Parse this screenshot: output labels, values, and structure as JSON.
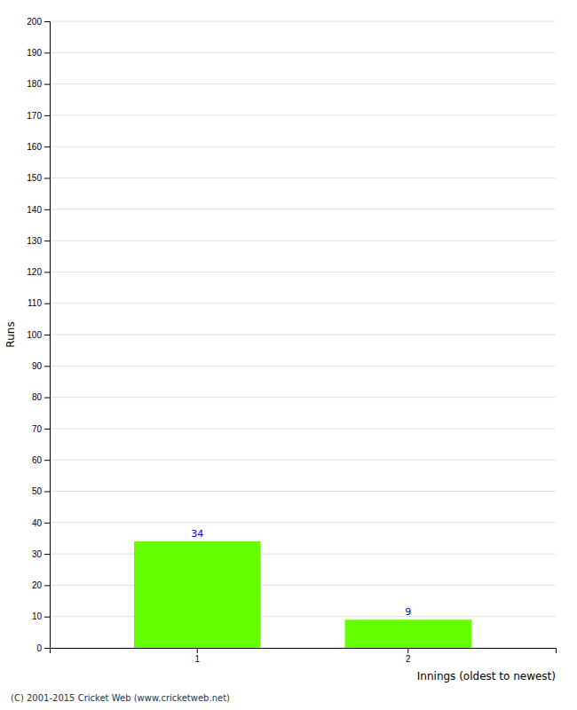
{
  "chart_data": {
    "type": "bar",
    "categories": [
      "1",
      "2"
    ],
    "values": [
      34,
      9
    ],
    "color": "#66ff00",
    "xlabel": "Innings (oldest to newest)",
    "ylabel": "Runs",
    "ylim": [
      0,
      200
    ],
    "yticks": [
      0,
      10,
      20,
      30,
      40,
      50,
      60,
      70,
      80,
      90,
      100,
      110,
      120,
      130,
      140,
      150,
      160,
      170,
      180,
      190,
      200
    ],
    "grid": true,
    "data_labels": true,
    "annotations": [
      "(C) 2001-2015 Cricket Web (www.cricketweb.net)"
    ]
  }
}
